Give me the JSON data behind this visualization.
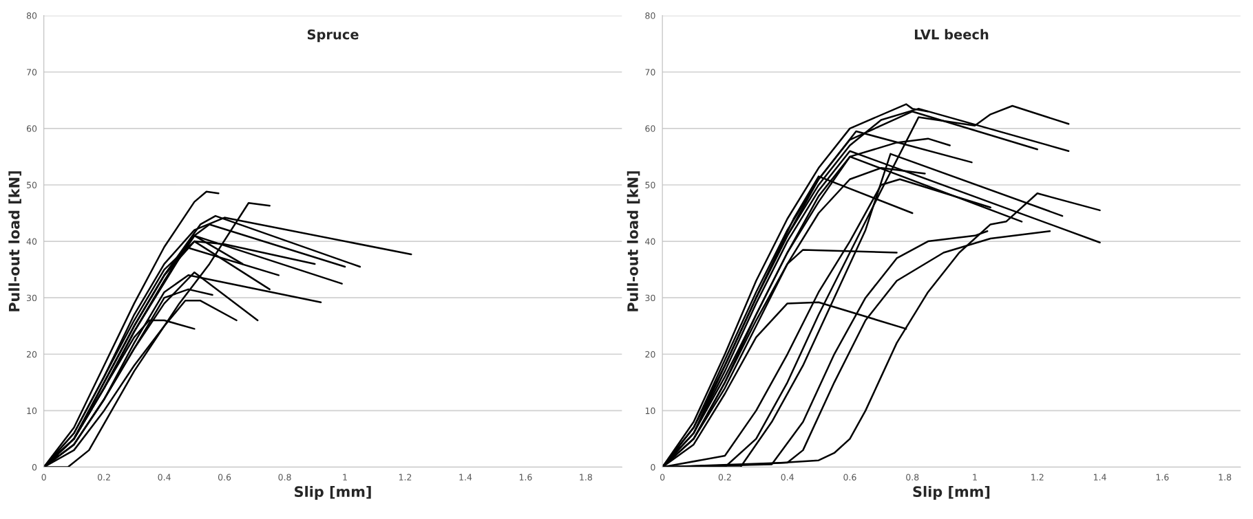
{
  "chart_data": [
    {
      "type": "line",
      "title": "Spruce",
      "xlabel": "Slip [mm]",
      "ylabel": "Pull-out load [kN]",
      "xlim": [
        0,
        1.92
      ],
      "ylim": [
        0,
        80
      ],
      "xticks": [
        0,
        0.2,
        0.4,
        0.6,
        0.8,
        1,
        1.2,
        1.4,
        1.6,
        1.8
      ],
      "yticks": [
        0,
        10,
        20,
        30,
        40,
        50,
        60,
        70,
        80
      ],
      "grid": "y",
      "marker": "none",
      "line_style": "solid",
      "series": [
        {
          "color": "#000000",
          "x": [
            0,
            0.1,
            0.2,
            0.3,
            0.4,
            0.5,
            0.54,
            0.58
          ],
          "values": [
            0,
            7,
            18,
            29,
            39,
            47,
            48.8,
            48.5
          ]
        },
        {
          "color": "#000000",
          "x": [
            0,
            0.08,
            0.15,
            0.3,
            0.45,
            0.55,
            0.68,
            0.75
          ],
          "values": [
            0,
            0,
            3,
            17,
            29,
            36,
            46.8,
            46.3
          ]
        },
        {
          "color": "#000000",
          "x": [
            0,
            0.1,
            0.2,
            0.3,
            0.4,
            0.5,
            0.6,
            1.22
          ],
          "values": [
            0,
            6,
            16,
            27,
            36,
            42,
            44.2,
            37.7
          ]
        },
        {
          "color": "#000000",
          "x": [
            0,
            0.1,
            0.2,
            0.3,
            0.4,
            0.52,
            0.57,
            1.05
          ],
          "values": [
            0,
            5,
            15,
            25,
            34,
            43,
            44.5,
            35.5
          ]
        },
        {
          "color": "#000000",
          "x": [
            0,
            0.1,
            0.2,
            0.3,
            0.4,
            0.5,
            0.55,
            1.0
          ],
          "values": [
            0,
            5,
            14,
            24,
            33,
            41,
            43,
            35.5
          ]
        },
        {
          "color": "#000000",
          "x": [
            0,
            0.1,
            0.2,
            0.3,
            0.45,
            0.5,
            0.99
          ],
          "values": [
            0,
            5,
            14,
            24,
            37,
            41,
            32.5
          ]
        },
        {
          "color": "#000000",
          "x": [
            0,
            0.1,
            0.2,
            0.3,
            0.4,
            0.48,
            0.92
          ],
          "values": [
            0,
            4,
            12,
            22,
            31,
            34,
            29.2
          ]
        },
        {
          "color": "#000000",
          "x": [
            0,
            0.1,
            0.2,
            0.3,
            0.4,
            0.5,
            0.71
          ],
          "values": [
            0,
            4,
            12,
            21,
            29,
            34.5,
            26
          ]
        },
        {
          "color": "#000000",
          "x": [
            0,
            0.1,
            0.2,
            0.3,
            0.4,
            0.47,
            0.52,
            0.64
          ],
          "values": [
            0,
            3,
            10,
            18,
            25,
            29.5,
            29.5,
            26
          ]
        },
        {
          "color": "#000000",
          "x": [
            0,
            0.1,
            0.2,
            0.3,
            0.35,
            0.4,
            0.5
          ],
          "values": [
            0,
            5,
            14,
            23,
            26,
            26,
            24.5
          ]
        },
        {
          "color": "#000000",
          "x": [
            0,
            0.1,
            0.2,
            0.3,
            0.4,
            0.47,
            0.78
          ],
          "values": [
            0,
            5,
            14,
            24,
            33,
            39,
            34
          ]
        },
        {
          "color": "#000000",
          "x": [
            0,
            0.1,
            0.2,
            0.3,
            0.4,
            0.5,
            0.66
          ],
          "values": [
            0,
            5,
            15,
            25,
            34,
            41,
            36
          ]
        },
        {
          "color": "#000000",
          "x": [
            0,
            0.1,
            0.2,
            0.3,
            0.4,
            0.5,
            0.75
          ],
          "values": [
            0,
            6,
            16,
            26,
            35,
            40,
            31.5
          ]
        },
        {
          "color": "#000000",
          "x": [
            0,
            0.1,
            0.2,
            0.3,
            0.4,
            0.48,
            0.56
          ],
          "values": [
            0,
            4,
            12,
            21,
            30,
            31.5,
            30.5
          ]
        },
        {
          "color": "#000000",
          "x": [
            0,
            0.1,
            0.2,
            0.3,
            0.4,
            0.5,
            0.6,
            0.9
          ],
          "values": [
            0,
            5,
            15,
            25,
            34,
            40,
            39.5,
            36
          ]
        }
      ]
    },
    {
      "type": "line",
      "title": "LVL beech",
      "xlabel": "Slip [mm]",
      "ylabel": "Pull-out load [kN]",
      "xlim": [
        0,
        1.85
      ],
      "ylim": [
        0,
        80
      ],
      "xticks": [
        0,
        0.2,
        0.4,
        0.6,
        0.8,
        1,
        1.2,
        1.4,
        1.6,
        1.8
      ],
      "yticks": [
        0,
        10,
        20,
        30,
        40,
        50,
        60,
        70,
        80
      ],
      "grid": "y",
      "marker": "none",
      "line_style": "solid",
      "series": [
        {
          "color": "#000000",
          "x": [
            0,
            0.1,
            0.2,
            0.3,
            0.4,
            0.5,
            0.6,
            0.78,
            0.8,
            0.85
          ],
          "values": [
            0,
            8,
            20,
            33,
            44,
            53,
            60,
            64.3,
            63.5,
            63
          ]
        },
        {
          "color": "#000000",
          "x": [
            0,
            0.1,
            0.2,
            0.3,
            0.4,
            0.5,
            0.6,
            0.7,
            0.82,
            1.3
          ],
          "values": [
            0,
            7,
            18,
            30,
            41,
            50,
            57,
            61.5,
            63.5,
            56
          ]
        },
        {
          "color": "#000000",
          "x": [
            0,
            0.1,
            0.2,
            0.3,
            0.4,
            0.5,
            0.6,
            0.8,
            1.2
          ],
          "values": [
            0,
            7,
            19,
            31,
            42,
            51,
            58,
            63,
            56.3
          ]
        },
        {
          "color": "#000000",
          "x": [
            0,
            0.2,
            0.3,
            0.4,
            0.5,
            0.6,
            0.7,
            0.82,
            1.0,
            1.05,
            1.12,
            1.3
          ],
          "values": [
            0,
            0,
            5,
            15,
            27,
            38,
            49,
            62,
            60.5,
            62.5,
            64,
            60.8
          ]
        },
        {
          "color": "#000000",
          "x": [
            0,
            0.1,
            0.2,
            0.3,
            0.4,
            0.5,
            0.6,
            0.75,
            0.85,
            0.92
          ],
          "values": [
            0,
            5,
            15,
            27,
            38,
            48,
            55,
            57.5,
            58.2,
            57
          ]
        },
        {
          "color": "#000000",
          "x": [
            0,
            0.1,
            0.2,
            0.3,
            0.4,
            0.5,
            0.62,
            0.99
          ],
          "values": [
            0,
            7,
            18,
            30,
            41,
            51,
            59.5,
            54
          ]
        },
        {
          "color": "#000000",
          "x": [
            0,
            0.1,
            0.2,
            0.3,
            0.4,
            0.5,
            0.6,
            1.4
          ],
          "values": [
            0,
            6,
            17,
            29,
            40,
            49,
            56,
            39.8
          ]
        },
        {
          "color": "#000000",
          "x": [
            0,
            0.1,
            0.2,
            0.3,
            0.4,
            0.5,
            0.6,
            1.15
          ],
          "values": [
            0,
            6,
            16,
            27,
            38,
            47,
            55,
            43.5
          ]
        },
        {
          "color": "#000000",
          "x": [
            0,
            0.1,
            0.2,
            0.3,
            0.42,
            0.5,
            0.8
          ],
          "values": [
            0,
            6,
            18,
            30,
            44,
            51.5,
            45
          ]
        },
        {
          "color": "#000000",
          "x": [
            0,
            0.1,
            0.2,
            0.3,
            0.4,
            0.45,
            0.75
          ],
          "values": [
            0,
            5,
            14,
            25,
            36,
            38.5,
            38
          ]
        },
        {
          "color": "#000000",
          "x": [
            0,
            0.2,
            0.3,
            0.4,
            0.5,
            0.6,
            0.7,
            0.76,
            1.05
          ],
          "values": [
            0,
            2,
            10,
            20,
            31,
            40,
            50,
            51,
            46
          ]
        },
        {
          "color": "#000000",
          "x": [
            0,
            0.25,
            0.35,
            0.45,
            0.55,
            0.65,
            0.73,
            1.28
          ],
          "values": [
            0,
            0,
            8,
            18,
            30,
            42,
            55.5,
            44.5
          ]
        },
        {
          "color": "#000000",
          "x": [
            0,
            0.35,
            0.45,
            0.55,
            0.65,
            0.75,
            0.85,
            1.0,
            1.04
          ],
          "values": [
            0,
            0.5,
            8,
            20,
            30,
            37,
            40,
            41,
            41.8
          ]
        },
        {
          "color": "#000000",
          "x": [
            0,
            0.3,
            0.5,
            0.55,
            0.6,
            0.65,
            0.7,
            0.75,
            0.85,
            0.95,
            1.05,
            1.1,
            1.2,
            1.4
          ],
          "values": [
            0,
            0.5,
            1.2,
            2.5,
            5,
            10,
            16,
            22,
            31,
            38,
            43,
            43.5,
            48.5,
            45.5
          ]
        },
        {
          "color": "#000000",
          "x": [
            0,
            0.4,
            0.45,
            0.55,
            0.65,
            0.75,
            0.9,
            1.05,
            1.24
          ],
          "values": [
            0,
            0.8,
            3,
            15,
            26,
            33,
            38,
            40.5,
            41.8
          ]
        },
        {
          "color": "#000000",
          "x": [
            0,
            0.1,
            0.2,
            0.3,
            0.4,
            0.5,
            0.78
          ],
          "values": [
            0,
            4,
            13,
            23,
            29,
            29.2,
            24.5
          ]
        },
        {
          "color": "#000000",
          "x": [
            0,
            0.1,
            0.2,
            0.3,
            0.4,
            0.5,
            0.6,
            0.7,
            0.84
          ],
          "values": [
            0,
            5,
            15,
            26,
            36,
            45,
            51,
            53,
            52
          ]
        }
      ]
    }
  ]
}
